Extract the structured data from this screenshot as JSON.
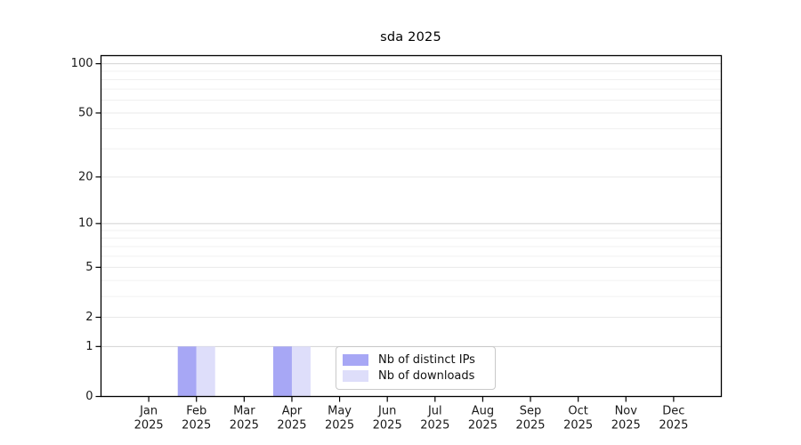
{
  "chart_data": {
    "type": "bar",
    "title": "sda 2025",
    "x_months": [
      "Jan",
      "Feb",
      "Mar",
      "Apr",
      "May",
      "Jun",
      "Jul",
      "Aug",
      "Sep",
      "Oct",
      "Nov",
      "Dec"
    ],
    "x_year": "2025",
    "categories": [
      "Jan 2025",
      "Feb 2025",
      "Mar 2025",
      "Apr 2025",
      "May 2025",
      "Jun 2025",
      "Jul 2025",
      "Aug 2025",
      "Sep 2025",
      "Oct 2025",
      "Nov 2025",
      "Dec 2025"
    ],
    "series": [
      {
        "name": "Nb of distinct IPs",
        "color": "#a7a7f5",
        "values": [
          0,
          1,
          0,
          1,
          0,
          0,
          0,
          0,
          0,
          0,
          0,
          0
        ]
      },
      {
        "name": "Nb of downloads",
        "color": "#dedefa",
        "values": [
          0,
          1,
          0,
          1,
          0,
          0,
          0,
          0,
          0,
          0,
          0,
          0
        ]
      }
    ],
    "y_scale": "log1p",
    "y_ticks": [
      0,
      1,
      2,
      5,
      10,
      20,
      50,
      100
    ],
    "y_minor_gridlines": [
      3,
      4,
      6,
      7,
      8,
      9,
      30,
      40,
      60,
      70,
      80,
      90
    ],
    "ylim": [
      0,
      112
    ],
    "grid": true,
    "legend_position": "inside-bottom-center",
    "colors": {
      "spine": "#000000",
      "grid_major": "#d2d2d2",
      "grid_minor": "#f0f0f0",
      "grid_labeled_minor": "#e9e9e9",
      "tick_text": "#1a1a1a",
      "background": "#ffffff"
    }
  }
}
